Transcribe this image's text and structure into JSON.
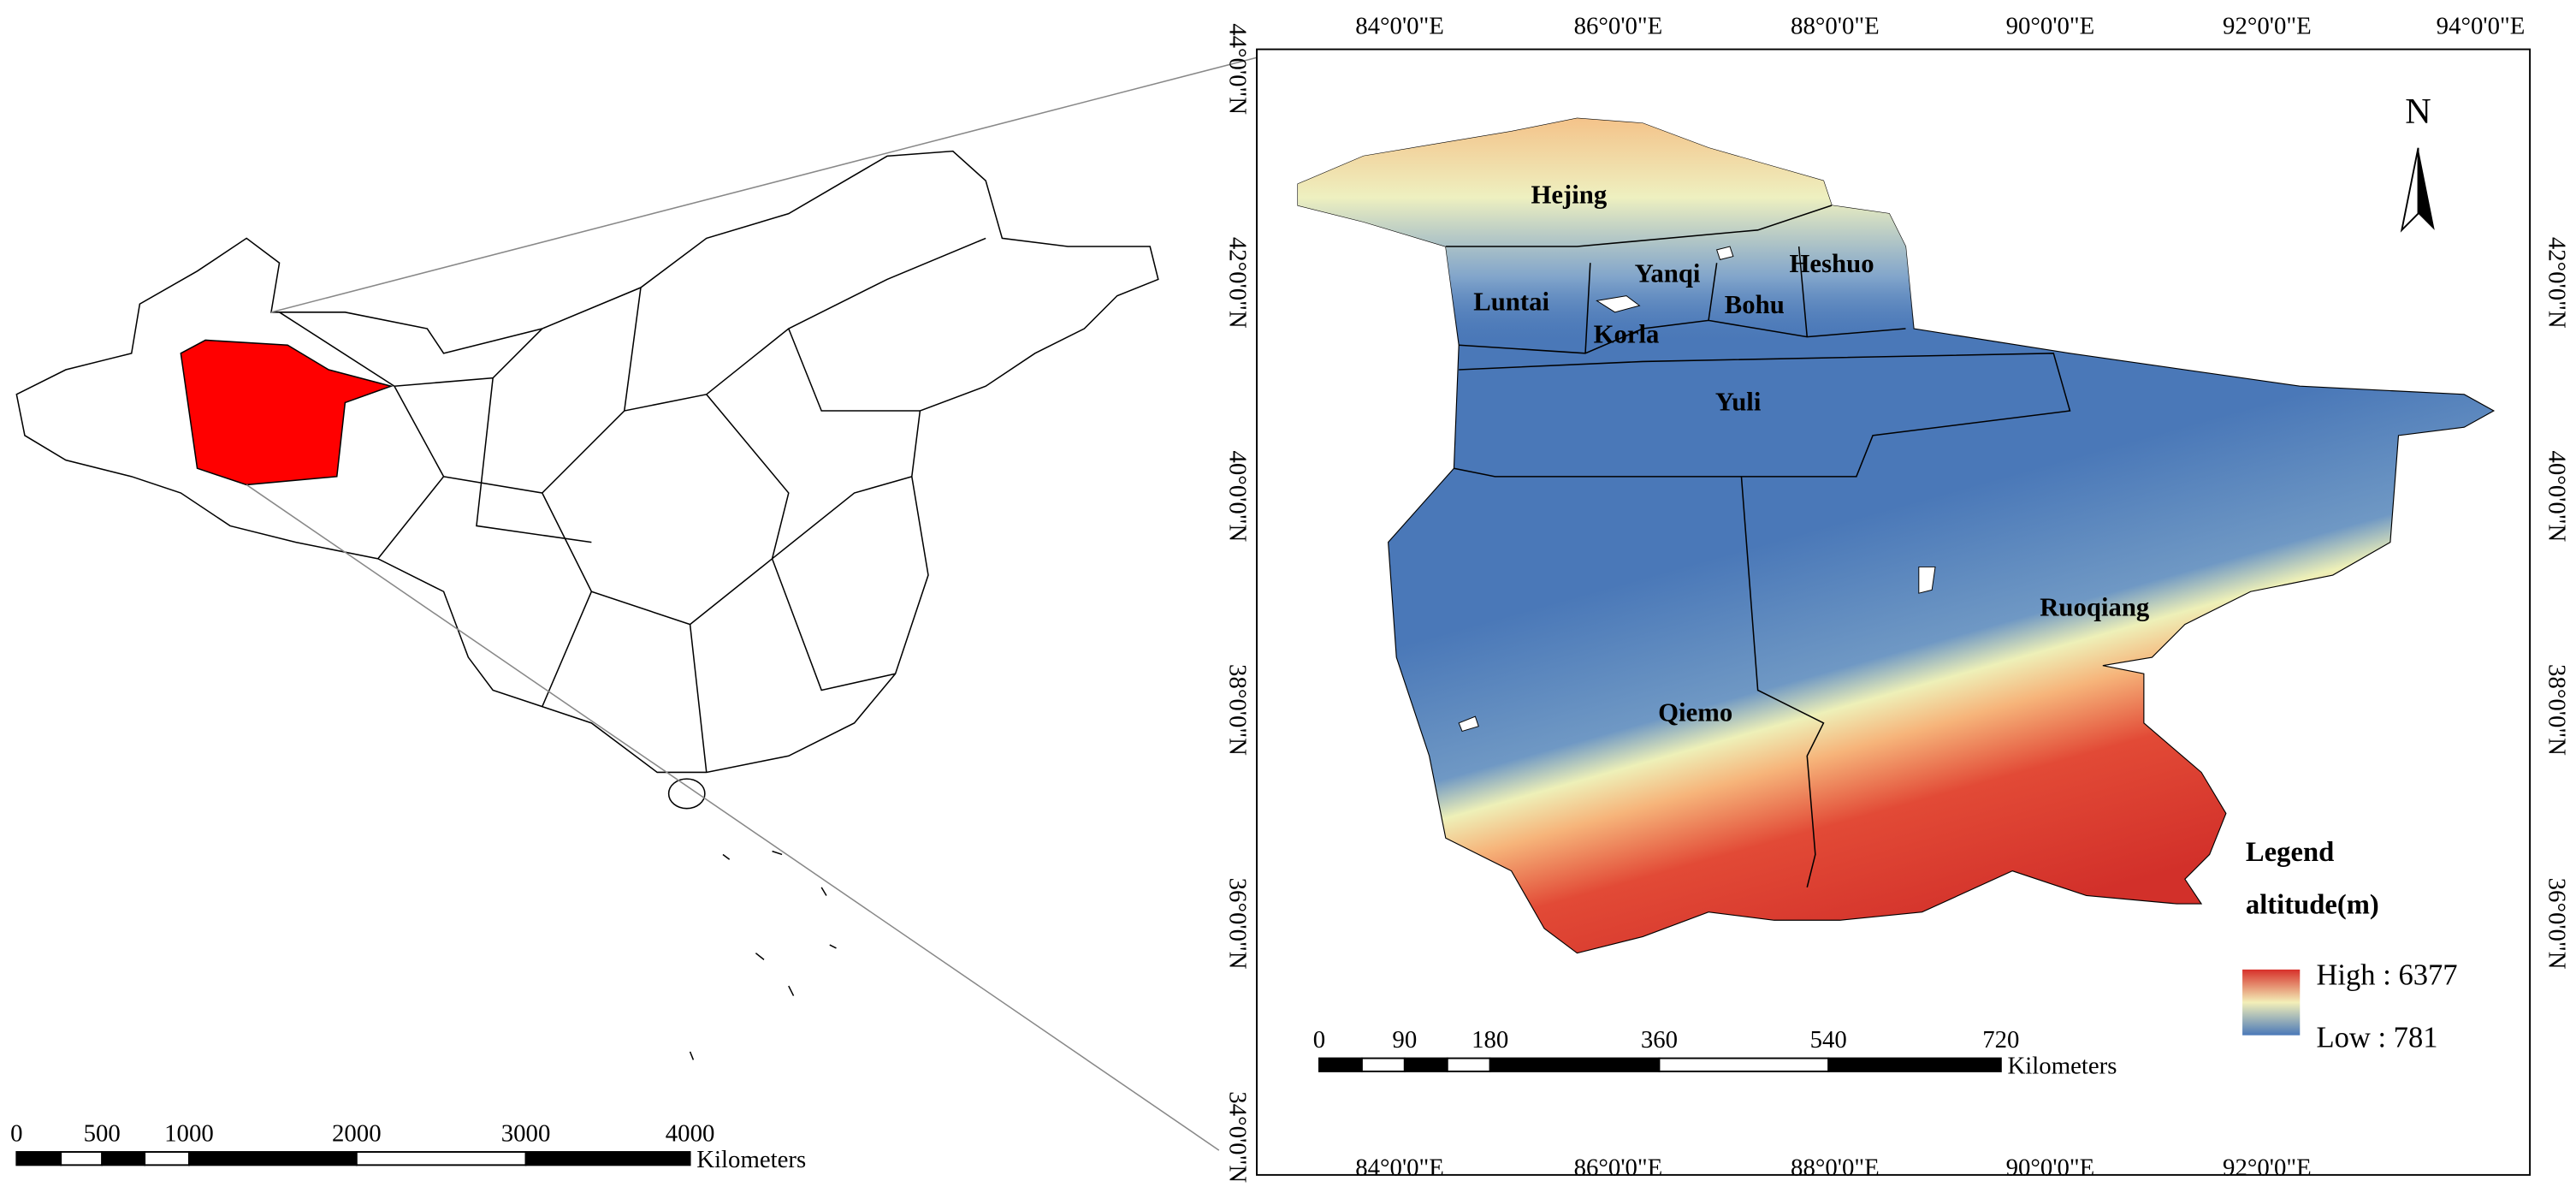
{
  "inset_map": {
    "scale_bar": {
      "ticks": [
        "0",
        "500",
        "1000",
        "2000",
        "3000",
        "4000"
      ],
      "unit": "Kilometers"
    }
  },
  "main_map": {
    "longitude_labels": [
      "84°0'0\"E",
      "86°0'0\"E",
      "88°0'0\"E",
      "90°0'0\"E",
      "92°0'0\"E",
      "94°0'0\"E"
    ],
    "latitude_labels": [
      "44°0'0\"N",
      "42°0'0\"N",
      "40°0'0\"N",
      "38°0'0\"N",
      "36°0'0\"N",
      "34°0'0\"N"
    ],
    "places": [
      "Hejing",
      "Yanqi",
      "Heshuo",
      "Luntai",
      "Bohu",
      "Korla",
      "Yuli",
      "Ruoqiang",
      "Qiemo"
    ],
    "north_arrow": "N",
    "legend": {
      "title": "Legend",
      "field": "altitude(m)",
      "high": "High : 6377",
      "low": "Low : 781"
    },
    "scale_bar": {
      "ticks": [
        "0",
        "90",
        "180",
        "360",
        "540",
        "720"
      ],
      "unit": "Kilometers"
    }
  }
}
